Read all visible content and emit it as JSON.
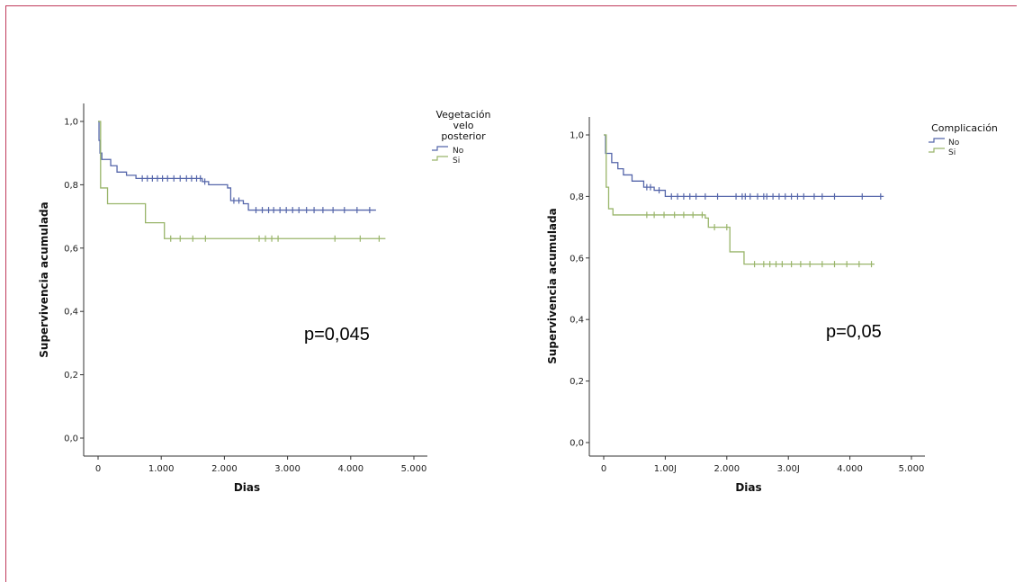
{
  "chart_data": [
    {
      "type": "line",
      "subtype": "kaplan-meier",
      "xlabel": "Dias",
      "ylabel": "Supervivencia acumulada",
      "xlim": [
        0,
        5000
      ],
      "ylim": [
        0,
        1
      ],
      "x_ticks": [
        0,
        1000,
        2000,
        3000,
        4000,
        5000
      ],
      "x_tick_labels": [
        "0",
        "1.000",
        "2.000",
        "3.000",
        "4.000",
        "5.000"
      ],
      "y_ticks": [
        0,
        0.2,
        0.4,
        0.6,
        0.8,
        1.0
      ],
      "y_tick_labels": [
        "0,0",
        "0,2",
        "0,4",
        "0,6",
        "0,8",
        "1,0"
      ],
      "legend_title_lines": [
        "Vegetación",
        "velo",
        "posterior"
      ],
      "legend_position": "top-right",
      "annotation": "p=0,045",
      "grid": false,
      "series": [
        {
          "name": "No",
          "color": "#5566aa",
          "steps": [
            [
              0,
              1.0
            ],
            [
              15,
              0.94
            ],
            [
              30,
              0.9
            ],
            [
              60,
              0.88
            ],
            [
              200,
              0.86
            ],
            [
              300,
              0.84
            ],
            [
              450,
              0.83
            ],
            [
              600,
              0.82
            ],
            [
              1650,
              0.81
            ],
            [
              1750,
              0.8
            ],
            [
              2050,
              0.79
            ],
            [
              2100,
              0.75
            ],
            [
              2300,
              0.74
            ],
            [
              2380,
              0.72
            ],
            [
              4400,
              0.72
            ]
          ],
          "censored": [
            700,
            780,
            860,
            940,
            1020,
            1100,
            1200,
            1300,
            1400,
            1480,
            1560,
            1620,
            1690,
            2150,
            2230,
            2500,
            2600,
            2700,
            2780,
            2880,
            2980,
            3080,
            3180,
            3300,
            3420,
            3560,
            3720,
            3900,
            4100,
            4300
          ]
        },
        {
          "name": "Si",
          "color": "#99b56a",
          "steps": [
            [
              0,
              1.0
            ],
            [
              40,
              0.79
            ],
            [
              150,
              0.74
            ],
            [
              750,
              0.68
            ],
            [
              1050,
              0.63
            ],
            [
              4550,
              0.63
            ]
          ],
          "censored": [
            1150,
            1300,
            1500,
            1700,
            2550,
            2650,
            2750,
            2850,
            3750,
            4150,
            4450
          ]
        }
      ]
    },
    {
      "type": "line",
      "subtype": "kaplan-meier",
      "xlabel": "Dias",
      "ylabel": "Supervivencia acumulada",
      "xlim": [
        0,
        5000
      ],
      "ylim": [
        0,
        1
      ],
      "x_ticks": [
        0,
        1000,
        2000,
        3000,
        4000,
        5000
      ],
      "x_tick_labels": [
        "0",
        "1.00J",
        "2.000",
        "3.00J",
        "4.000",
        "5.000"
      ],
      "y_ticks": [
        0,
        0.2,
        0.4,
        0.6,
        0.8,
        1.0
      ],
      "y_tick_labels": [
        "0,0",
        "0,2",
        "0,4",
        "0,6",
        "0,8",
        "1,0"
      ],
      "legend_title_lines": [
        "Complicación"
      ],
      "legend_position": "top-right",
      "annotation": "p=0,05",
      "grid": false,
      "series": [
        {
          "name": "No",
          "color": "#5566aa",
          "steps": [
            [
              0,
              1.0
            ],
            [
              30,
              0.94
            ],
            [
              130,
              0.91
            ],
            [
              230,
              0.89
            ],
            [
              320,
              0.87
            ],
            [
              460,
              0.85
            ],
            [
              650,
              0.83
            ],
            [
              820,
              0.82
            ],
            [
              1000,
              0.8
            ],
            [
              4550,
              0.8
            ]
          ],
          "censored": [
            700,
            760,
            900,
            1100,
            1200,
            1300,
            1400,
            1500,
            1650,
            1850,
            2150,
            2250,
            2300,
            2380,
            2500,
            2600,
            2650,
            2750,
            2850,
            2950,
            3050,
            3150,
            3250,
            3420,
            3550,
            3750,
            4200,
            4500
          ]
        },
        {
          "name": "Si",
          "color": "#99b56a",
          "steps": [
            [
              0,
              1.0
            ],
            [
              40,
              0.83
            ],
            [
              80,
              0.76
            ],
            [
              150,
              0.74
            ],
            [
              1650,
              0.73
            ],
            [
              1700,
              0.7
            ],
            [
              2050,
              0.62
            ],
            [
              2280,
              0.58
            ],
            [
              4400,
              0.58
            ]
          ],
          "censored": [
            700,
            820,
            980,
            1150,
            1300,
            1450,
            1600,
            1800,
            2000,
            2450,
            2600,
            2700,
            2800,
            2900,
            3050,
            3200,
            3350,
            3550,
            3750,
            3950,
            4150,
            4350
          ]
        }
      ]
    }
  ]
}
